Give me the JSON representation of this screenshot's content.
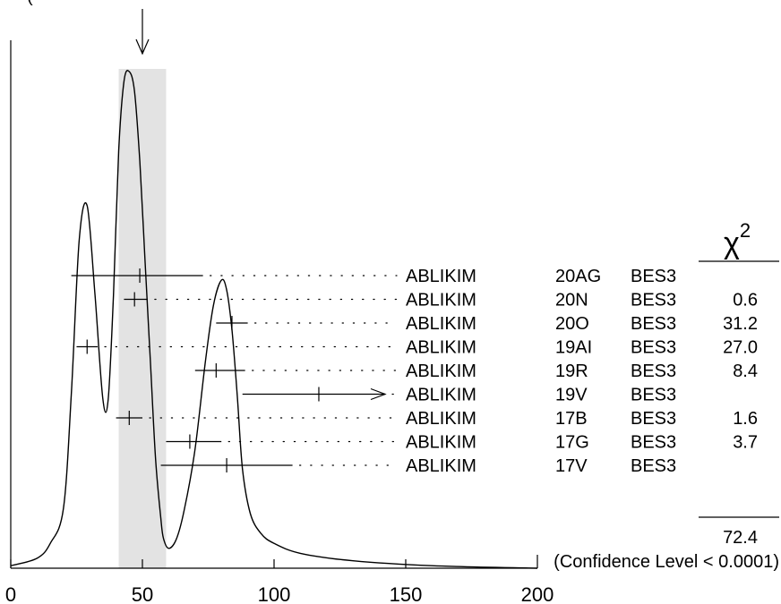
{
  "header": {
    "top_note": "("
  },
  "chart_data": {
    "type": "ideogram",
    "title": "",
    "xlabel": "",
    "ylabel": "",
    "xlim": [
      0,
      200
    ],
    "x_ticks": [
      0,
      50,
      100,
      150,
      200
    ],
    "x_tick_labels": [
      "0",
      "50",
      "100",
      "150",
      "200"
    ],
    "weighted_average": 50,
    "error_band": [
      41,
      59
    ],
    "curve": {
      "x": [
        0,
        10,
        15,
        20,
        23,
        26,
        29,
        32,
        35,
        37,
        39,
        41,
        43,
        45,
        47,
        49,
        51,
        53,
        55,
        57,
        58,
        60,
        63,
        66,
        70,
        74,
        77,
        80,
        82,
        84,
        86,
        88,
        91,
        95,
        100,
        110,
        130,
        160,
        200
      ],
      "y": [
        0.005,
        0.02,
        0.05,
        0.12,
        0.35,
        0.66,
        0.73,
        0.55,
        0.34,
        0.34,
        0.55,
        0.84,
        0.98,
        1.0,
        0.96,
        0.82,
        0.62,
        0.42,
        0.22,
        0.1,
        0.06,
        0.04,
        0.06,
        0.12,
        0.24,
        0.42,
        0.53,
        0.58,
        0.56,
        0.48,
        0.35,
        0.2,
        0.11,
        0.07,
        0.05,
        0.03,
        0.015,
        0.005,
        0.0
      ]
    },
    "measurements": [
      {
        "author": "ABLIKIM",
        "ref": "20AG",
        "experiment": "BES3",
        "value": 49,
        "low": 23,
        "high": 73,
        "chi2": ""
      },
      {
        "author": "ABLIKIM",
        "ref": "20N",
        "experiment": "BES3",
        "value": 47,
        "low": 43,
        "high": 52,
        "chi2": "0.6"
      },
      {
        "author": "ABLIKIM",
        "ref": "20O",
        "experiment": "BES3",
        "value": 84,
        "low": 78,
        "high": 90,
        "chi2": "31.2"
      },
      {
        "author": "ABLIKIM",
        "ref": "19AI",
        "experiment": "BES3",
        "value": 29,
        "low": 25,
        "high": 33,
        "chi2": "27.0"
      },
      {
        "author": "ABLIKIM",
        "ref": "19R",
        "experiment": "BES3",
        "value": 78,
        "low": 70,
        "high": 89,
        "chi2": "8.4"
      },
      {
        "author": "ABLIKIM",
        "ref": "19V",
        "experiment": "BES3",
        "value": 117,
        "low": 88,
        "high": null,
        "lower_limit": true,
        "chi2": ""
      },
      {
        "author": "ABLIKIM",
        "ref": "17B",
        "experiment": "BES3",
        "value": 45,
        "low": 40,
        "high": 50,
        "chi2": "1.6"
      },
      {
        "author": "ABLIKIM",
        "ref": "17G",
        "experiment": "BES3",
        "value": 68,
        "low": 59,
        "high": 80,
        "chi2": "3.7"
      },
      {
        "author": "ABLIKIM",
        "ref": "17V",
        "experiment": "BES3",
        "value": 82,
        "low": 57,
        "high": 107,
        "chi2": ""
      }
    ],
    "chi2_header": "χ",
    "chi2_exponent": "2",
    "chi2_total": "72.4",
    "confidence_level": "(Confidence Level < 0.0001)"
  }
}
